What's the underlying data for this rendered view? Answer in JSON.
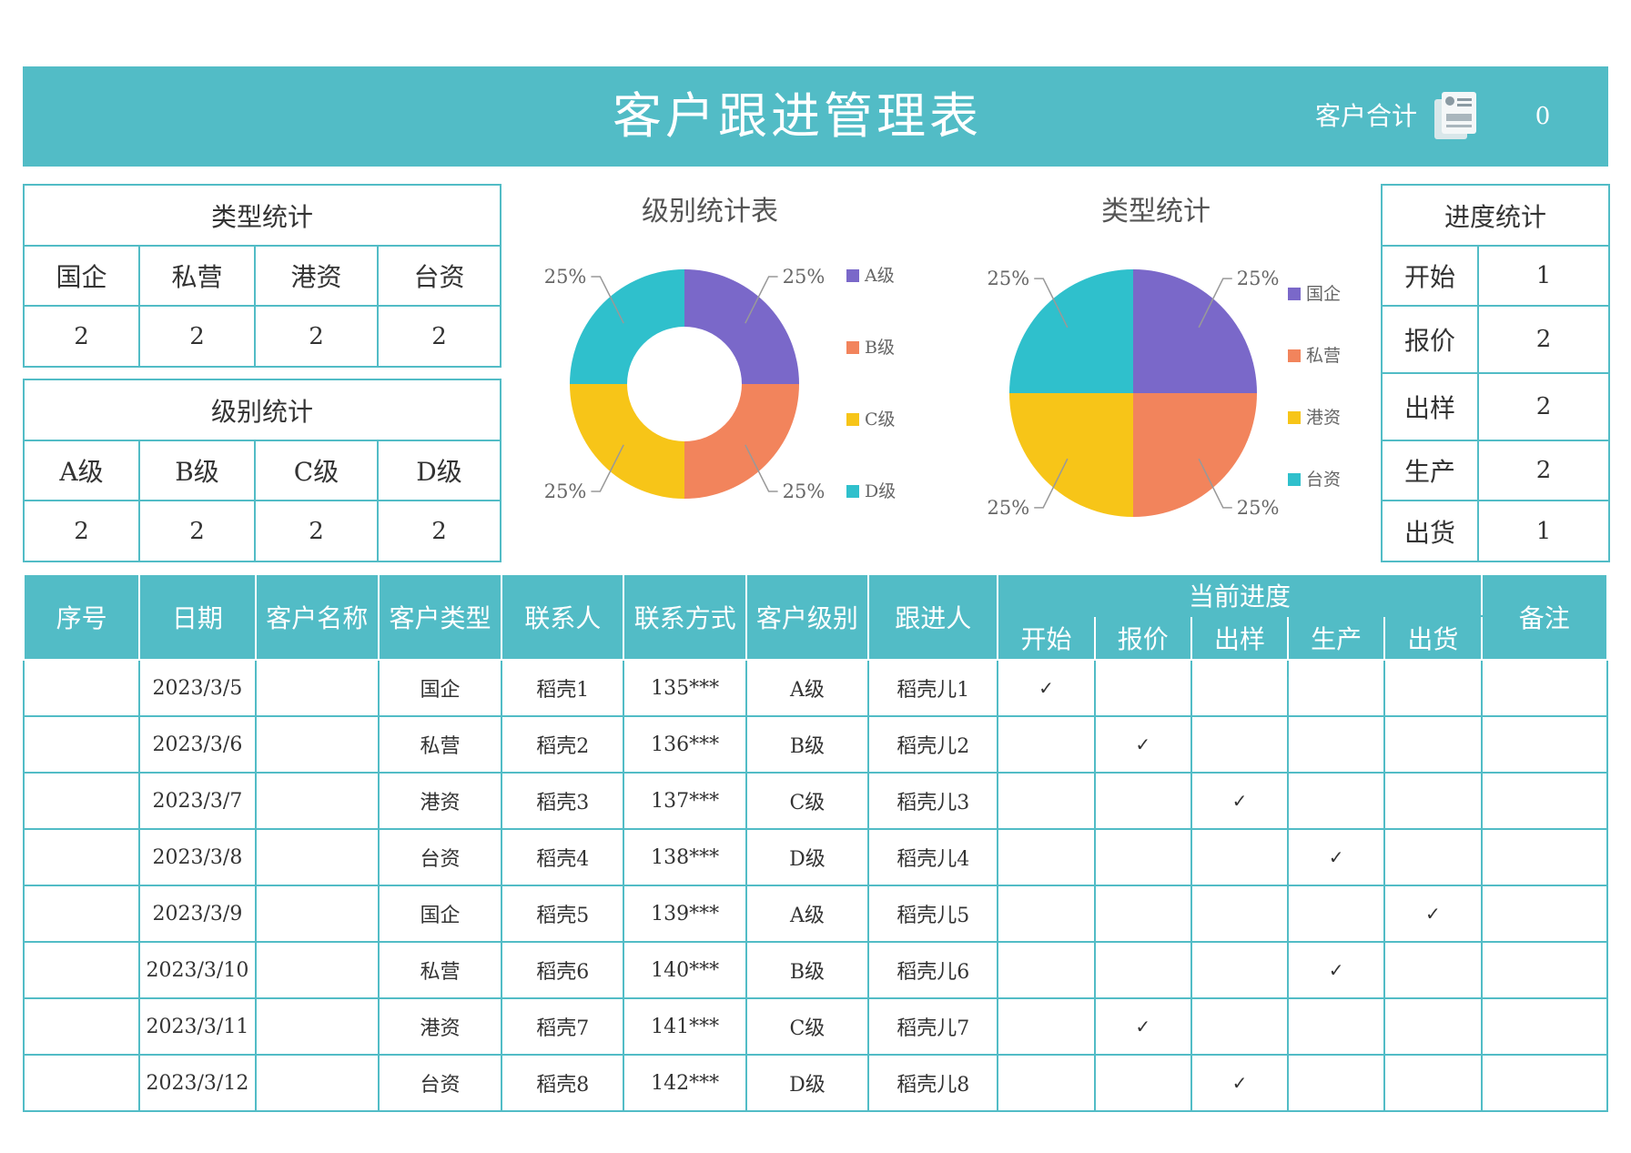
{
  "header": {
    "title": "客户跟进管理表",
    "total_label": "客户合计",
    "total_value": "0",
    "total_icon": "document-list-icon"
  },
  "type_stats": {
    "title": "类型统计",
    "headers": [
      "国企",
      "私营",
      "港资",
      "台资"
    ],
    "values": [
      "2",
      "2",
      "2",
      "2"
    ]
  },
  "level_stats": {
    "title": "级别统计",
    "headers": [
      "A级",
      "B级",
      "C级",
      "D级"
    ],
    "values": [
      "2",
      "2",
      "2",
      "2"
    ]
  },
  "progress_stats": {
    "title": "进度统计",
    "rows": [
      {
        "label": "开始",
        "value": "1"
      },
      {
        "label": "报价",
        "value": "2"
      },
      {
        "label": "出样",
        "value": "2"
      },
      {
        "label": "生产",
        "value": "2"
      },
      {
        "label": "出货",
        "value": "1"
      }
    ]
  },
  "chart_data": [
    {
      "type": "pie",
      "variant": "donut",
      "title": "级别统计表",
      "categories": [
        "A级",
        "B级",
        "C级",
        "D级"
      ],
      "values": [
        25,
        25,
        25,
        25
      ],
      "labels": [
        "25%",
        "25%",
        "25%",
        "25%"
      ],
      "colors": [
        "#7a68c9",
        "#f2845c",
        "#f7c518",
        "#2fc0cc"
      ],
      "legend": "right"
    },
    {
      "type": "pie",
      "title": "类型统计",
      "categories": [
        "国企",
        "私营",
        "港资",
        "台资"
      ],
      "values": [
        25,
        25,
        25,
        25
      ],
      "labels": [
        "25%",
        "25%",
        "25%",
        "25%"
      ],
      "colors": [
        "#7a68c9",
        "#f2845c",
        "#f7c518",
        "#2fc0cc"
      ],
      "legend": "right"
    }
  ],
  "table": {
    "headers": {
      "seq": "序号",
      "date": "日期",
      "name": "客户名称",
      "type": "客户类型",
      "contact": "联系人",
      "phone": "联系方式",
      "level": "客户级别",
      "owner": "跟进人",
      "progress_group": "当前进度",
      "stages": [
        "开始",
        "报价",
        "出样",
        "生产",
        "出货"
      ],
      "note": "备注"
    },
    "check_mark": "✓",
    "rows": [
      {
        "seq": "",
        "date": "2023/3/5",
        "name": "",
        "type": "国企",
        "contact": "稻壳1",
        "phone": "135***",
        "level": "A级",
        "owner": "稻壳儿1",
        "stage": 0,
        "note": ""
      },
      {
        "seq": "",
        "date": "2023/3/6",
        "name": "",
        "type": "私营",
        "contact": "稻壳2",
        "phone": "136***",
        "level": "B级",
        "owner": "稻壳儿2",
        "stage": 1,
        "note": ""
      },
      {
        "seq": "",
        "date": "2023/3/7",
        "name": "",
        "type": "港资",
        "contact": "稻壳3",
        "phone": "137***",
        "level": "C级",
        "owner": "稻壳儿3",
        "stage": 2,
        "note": ""
      },
      {
        "seq": "",
        "date": "2023/3/8",
        "name": "",
        "type": "台资",
        "contact": "稻壳4",
        "phone": "138***",
        "level": "D级",
        "owner": "稻壳儿4",
        "stage": 3,
        "note": ""
      },
      {
        "seq": "",
        "date": "2023/3/9",
        "name": "",
        "type": "国企",
        "contact": "稻壳5",
        "phone": "139***",
        "level": "A级",
        "owner": "稻壳儿5",
        "stage": 4,
        "note": ""
      },
      {
        "seq": "",
        "date": "2023/3/10",
        "name": "",
        "type": "私营",
        "contact": "稻壳6",
        "phone": "140***",
        "level": "B级",
        "owner": "稻壳儿6",
        "stage": 3,
        "note": ""
      },
      {
        "seq": "",
        "date": "2023/3/11",
        "name": "",
        "type": "港资",
        "contact": "稻壳7",
        "phone": "141***",
        "level": "C级",
        "owner": "稻壳儿7",
        "stage": 1,
        "note": ""
      },
      {
        "seq": "",
        "date": "2023/3/12",
        "name": "",
        "type": "台资",
        "contact": "稻壳8",
        "phone": "142***",
        "level": "D级",
        "owner": "稻壳儿8",
        "stage": 2,
        "note": ""
      }
    ]
  }
}
